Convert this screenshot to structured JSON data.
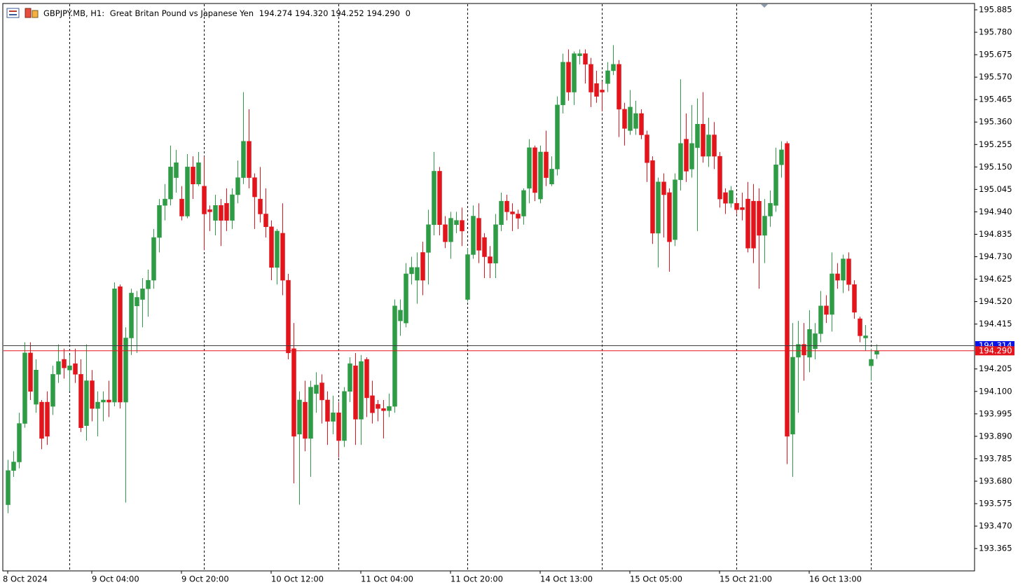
{
  "header": {
    "symbol": "GBPJPY.MB, H1:",
    "description": "Great Britan Pound vs Japanese Yen",
    "prices": "194.274 194.320 194.252 194.290",
    "volume": "0"
  },
  "chart_data": {
    "type": "candlestick",
    "categories": [
      "8 Oct 2024",
      null,
      null,
      null,
      null,
      null,
      null,
      null,
      null,
      null,
      null,
      null,
      null,
      null,
      null,
      "9 Oct 04:00",
      null,
      null,
      null,
      null,
      null,
      null,
      null,
      null,
      null,
      null,
      null,
      null,
      null,
      null,
      null,
      "9 Oct 20:00",
      null,
      null,
      null,
      null,
      null,
      null,
      null,
      null,
      null,
      null,
      null,
      null,
      null,
      null,
      null,
      "10 Oct 12:00",
      null,
      null,
      null,
      null,
      null,
      null,
      null,
      null,
      null,
      null,
      null,
      null,
      null,
      null,
      null,
      "11 Oct 04:00",
      null,
      null,
      null,
      null,
      null,
      null,
      null,
      null,
      null,
      null,
      null,
      null,
      null,
      null,
      null,
      "11 Oct 20:00",
      null,
      null,
      null,
      null,
      null,
      null,
      null,
      null,
      null,
      null,
      null,
      null,
      null,
      null,
      null,
      "14 Oct 13:00",
      null,
      null,
      null,
      null,
      null,
      null,
      null,
      null,
      null,
      null,
      null,
      null,
      null,
      null,
      null,
      "15 Oct 05:00",
      null,
      null,
      null,
      null,
      null,
      null,
      null,
      null,
      null,
      null,
      null,
      null,
      null,
      null,
      null,
      "15 Oct 21:00",
      null,
      null,
      null,
      null,
      null,
      null,
      null,
      null,
      null,
      null,
      null,
      null,
      null,
      null,
      null,
      "16 Oct 13:00",
      null,
      null,
      null,
      null,
      null,
      null,
      null,
      null,
      null,
      null,
      null,
      null
    ],
    "open": [
      193.57,
      193.73,
      193.77,
      193.95,
      194.28,
      194.04,
      194.05,
      194.05,
      194.03,
      194.18,
      194.25,
      194.2,
      194.23,
      194.18,
      193.94,
      194.15,
      194.02,
      194.05,
      194.06,
      194.05,
      194.59,
      194.05,
      194.35,
      194.5,
      194.53,
      194.58,
      194.62,
      194.82,
      194.97,
      195.0,
      195.1,
      195.0,
      194.92,
      195.15,
      195.07,
      195.06,
      194.95,
      194.9,
      194.97,
      194.98,
      194.9,
      195.02,
      195.1,
      195.27,
      195.1,
      195.0,
      194.93,
      194.87,
      194.68,
      194.84,
      194.62,
      194.3,
      193.9,
      194.05,
      193.88,
      194.09,
      194.14,
      194.06,
      193.96,
      194.0,
      193.87,
      194.1,
      194.22,
      193.97,
      194.25,
      194.08,
      194.04,
      194.02,
      194.01,
      194.03,
      194.43,
      194.42,
      194.65,
      194.62,
      194.75,
      194.75,
      194.88,
      195.13,
      194.88,
      194.8,
      194.88,
      194.9,
      194.53,
      194.74,
      194.91,
      194.82,
      194.73,
      194.7,
      194.88,
      194.99,
      194.94,
      194.93,
      194.92,
      195.05,
      195.24,
      195.0,
      195.22,
      195.07,
      195.14,
      195.44,
      195.64,
      195.5,
      195.67,
      195.68,
      195.63,
      195.54,
      195.51,
      195.54,
      195.6,
      195.63,
      195.42,
      195.32,
      195.33,
      195.4,
      195.3,
      195.18,
      194.84,
      195.08,
      195.03,
      194.81,
      195.09,
      195.28,
      195.14,
      195.24,
      195.35,
      195.2,
      195.3,
      195.2,
      195.03,
      194.98,
      194.98,
      194.96,
      195.0,
      194.99,
      194.99,
      194.83,
      194.92,
      194.97,
      195.16,
      195.26,
      193.9,
      194.26,
      194.32,
      194.26,
      194.3,
      194.37,
      194.5,
      194.46,
      194.65,
      194.62,
      194.72,
      194.6,
      194.44,
      194.35,
      194.22,
      194.274
    ],
    "high": [
      193.78,
      193.82,
      194.0,
      194.33,
      194.33,
      194.25,
      194.06,
      194.1,
      194.22,
      194.32,
      194.3,
      194.27,
      194.3,
      194.25,
      194.32,
      194.2,
      194.1,
      194.1,
      194.15,
      194.61,
      194.6,
      194.4,
      194.58,
      194.57,
      194.63,
      194.67,
      194.86,
      195.0,
      195.07,
      195.25,
      195.23,
      195.06,
      195.21,
      195.2,
      195.22,
      195.2,
      194.97,
      195.02,
      195.0,
      195.05,
      195.05,
      195.18,
      195.5,
      195.42,
      195.12,
      195.15,
      195.05,
      194.9,
      194.86,
      194.98,
      194.65,
      194.42,
      194.1,
      194.15,
      194.15,
      194.19,
      194.18,
      194.1,
      194.08,
      194.05,
      194.12,
      194.26,
      194.28,
      194.27,
      194.26,
      194.15,
      194.06,
      194.06,
      194.09,
      194.53,
      194.53,
      194.7,
      194.73,
      194.75,
      194.8,
      194.95,
      195.22,
      195.15,
      194.92,
      194.94,
      194.94,
      194.96,
      194.77,
      194.97,
      194.98,
      194.84,
      194.78,
      194.93,
      195.03,
      195.02,
      194.98,
      194.95,
      195.05,
      195.28,
      195.25,
      195.25,
      195.32,
      195.2,
      195.48,
      195.68,
      195.7,
      195.69,
      195.7,
      195.7,
      195.66,
      195.6,
      195.55,
      195.64,
      195.72,
      195.65,
      195.45,
      195.51,
      195.46,
      195.42,
      195.32,
      195.2,
      195.1,
      195.12,
      195.05,
      195.12,
      195.56,
      195.4,
      195.44,
      195.47,
      195.5,
      195.38,
      195.36,
      195.22,
      195.05,
      195.06,
      195.0,
      195.03,
      195.08,
      195.07,
      195.05,
      195.0,
      195.04,
      195.24,
      195.27,
      195.27,
      194.42,
      194.43,
      194.42,
      194.48,
      194.42,
      194.57,
      194.55,
      194.75,
      194.7,
      194.74,
      194.75,
      194.62,
      194.45,
      194.41,
      194.3,
      194.32
    ],
    "low": [
      193.53,
      193.7,
      193.74,
      193.93,
      194.06,
      194.0,
      193.83,
      193.85,
      193.99,
      194.14,
      194.16,
      194.1,
      194.14,
      193.91,
      193.87,
      193.96,
      193.89,
      193.96,
      193.98,
      194.03,
      194.02,
      193.58,
      194.27,
      194.28,
      194.4,
      194.45,
      194.58,
      194.75,
      194.9,
      194.97,
      195.03,
      194.9,
      194.91,
      195.0,
      195.06,
      194.76,
      194.85,
      194.83,
      194.78,
      194.85,
      194.86,
      194.98,
      195.07,
      195.05,
      194.86,
      194.89,
      194.82,
      194.62,
      194.6,
      194.55,
      194.25,
      193.67,
      193.57,
      193.82,
      193.7,
      194.0,
      193.95,
      193.85,
      193.9,
      193.79,
      193.84,
      194.05,
      193.85,
      193.85,
      193.98,
      193.95,
      193.96,
      193.88,
      193.98,
      194.0,
      194.36,
      194.4,
      194.6,
      194.51,
      194.55,
      194.6,
      194.83,
      194.83,
      194.77,
      194.72,
      194.84,
      194.78,
      194.52,
      194.72,
      194.7,
      194.63,
      194.63,
      194.63,
      194.85,
      194.9,
      194.85,
      194.86,
      194.88,
      194.98,
      194.99,
      194.98,
      195.06,
      195.06,
      195.11,
      195.4,
      195.46,
      195.44,
      195.63,
      195.54,
      195.43,
      195.45,
      195.41,
      195.5,
      195.58,
      195.29,
      195.25,
      195.3,
      195.3,
      195.28,
      195.08,
      194.79,
      194.68,
      194.82,
      194.66,
      194.78,
      195.04,
      195.08,
      195.1,
      194.85,
      195.17,
      195.15,
      195.14,
      194.96,
      194.93,
      194.96,
      194.93,
      194.9,
      194.75,
      194.7,
      194.58,
      194.7,
      194.87,
      194.94,
      195.1,
      193.76,
      193.7,
      194.0,
      194.15,
      194.19,
      194.25,
      194.33,
      194.42,
      194.38,
      194.58,
      194.56,
      194.57,
      194.44,
      194.33,
      194.29,
      194.15,
      194.252
    ],
    "close": [
      193.73,
      193.77,
      193.95,
      194.28,
      194.1,
      194.2,
      193.88,
      193.89,
      194.18,
      194.24,
      194.21,
      194.22,
      194.18,
      193.93,
      194.15,
      194.02,
      194.05,
      194.06,
      194.05,
      194.58,
      194.05,
      194.35,
      194.56,
      194.54,
      194.58,
      194.62,
      194.82,
      194.97,
      195.0,
      195.15,
      195.17,
      194.92,
      195.15,
      195.07,
      195.17,
      194.93,
      194.94,
      194.97,
      194.9,
      194.9,
      195.02,
      195.1,
      195.27,
      195.1,
      195.01,
      194.93,
      194.87,
      194.68,
      194.85,
      194.62,
      194.28,
      193.89,
      194.06,
      193.88,
      194.12,
      194.13,
      194.06,
      193.96,
      194.0,
      193.87,
      194.1,
      194.23,
      193.97,
      194.24,
      194.07,
      194.0,
      194.02,
      194.01,
      194.03,
      194.5,
      194.48,
      194.65,
      194.68,
      194.68,
      194.62,
      194.88,
      195.13,
      194.88,
      194.8,
      194.91,
      194.9,
      194.85,
      194.74,
      194.92,
      194.76,
      194.73,
      194.7,
      194.88,
      194.99,
      194.94,
      194.93,
      194.91,
      195.04,
      195.24,
      195.03,
      195.22,
      195.1,
      195.14,
      195.44,
      195.64,
      195.5,
      195.68,
      195.68,
      195.63,
      195.5,
      195.48,
      195.5,
      195.6,
      195.63,
      195.42,
      195.33,
      195.43,
      195.4,
      195.3,
      195.17,
      194.84,
      195.08,
      195.02,
      194.8,
      195.09,
      195.26,
      195.13,
      195.26,
      195.35,
      195.2,
      195.3,
      195.2,
      195.0,
      194.98,
      195.04,
      194.95,
      194.95,
      194.77,
      194.77,
      194.83,
      194.92,
      194.98,
      195.16,
      195.23,
      193.89,
      194.26,
      194.32,
      194.27,
      194.39,
      194.37,
      194.5,
      194.46,
      194.65,
      194.62,
      194.72,
      194.6,
      194.47,
      194.36,
      194.36,
      194.25,
      194.29
    ],
    "up_color": "#2e9b45",
    "down_color": "#e3141b",
    "ylim": [
      193.2605,
      195.9145
    ],
    "yticks": [
      195.885,
      {
        "value": 195.78,
        "label": "195.780"
      },
      195.675,
      {
        "value": 195.57,
        "label": "195.570"
      },
      195.465,
      {
        "value": 195.36,
        "label": "195.360"
      },
      195.255,
      {
        "value": 195.15,
        "label": "195.150"
      },
      195.045,
      {
        "value": 194.94,
        "label": "194.940"
      },
      194.835,
      {
        "value": 194.73,
        "label": "194.730"
      },
      194.625,
      {
        "value": 194.52,
        "label": "194.520"
      },
      194.415,
      194.205,
      {
        "value": 194.1,
        "label": "194.100"
      },
      193.995,
      {
        "value": 193.89,
        "label": "193.890"
      },
      193.785,
      {
        "value": 193.68,
        "label": "193.680"
      },
      193.575,
      {
        "value": 193.47,
        "label": "193.470"
      },
      193.365
    ],
    "ask": {
      "value": 194.314,
      "label": "194.314",
      "color": "#0a14e6"
    },
    "bid": {
      "value": 194.29,
      "label": "194.290",
      "color": "#e3141b"
    }
  }
}
